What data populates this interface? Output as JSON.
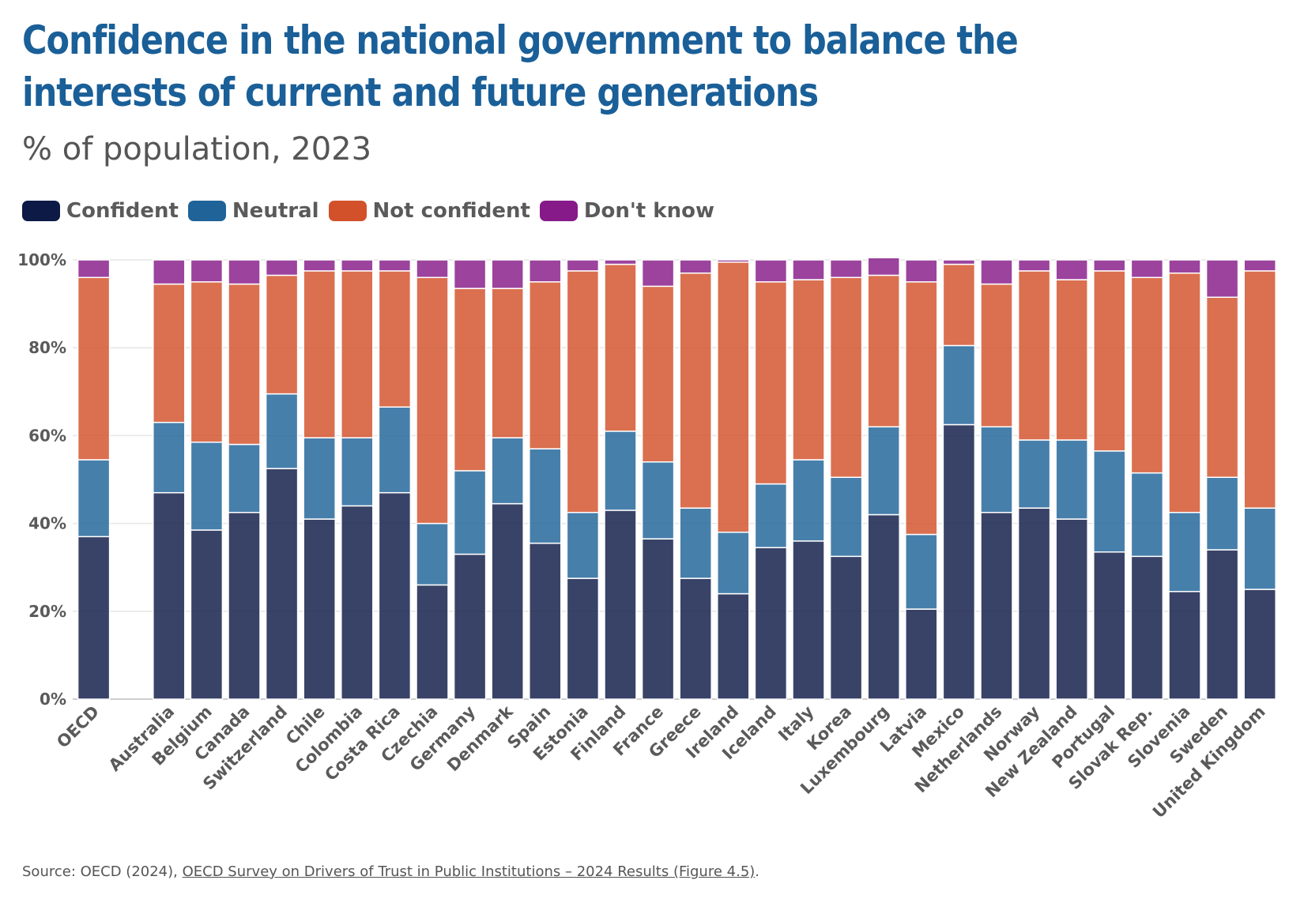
{
  "header": {
    "title": "Confidence in the national government to balance the interests of current and future generations",
    "subtitle": "% of population, 2023"
  },
  "footer": {
    "source_prefix": "Source: OECD (2024), ",
    "source_link": "OECD Survey on Drivers of Trust in Public Institutions – 2024 Results (Figure 4.5)",
    "source_suffix": "."
  },
  "chart_data": {
    "type": "bar",
    "stacked": true,
    "ylim": [
      0,
      100
    ],
    "yticks": [
      "0%",
      "20%",
      "40%",
      "60%",
      "80%",
      "100%"
    ],
    "grid": true,
    "legend_position": "top-left",
    "categories": [
      "OECD",
      "Australia",
      "Belgium",
      "Canada",
      "Switzerland",
      "Chile",
      "Colombia",
      "Costa Rica",
      "Czechia",
      "Germany",
      "Denmark",
      "Spain",
      "Estonia",
      "Finland",
      "France",
      "Greece",
      "Ireland",
      "Iceland",
      "Italy",
      "Korea",
      "Luxembourg",
      "Latvia",
      "Mexico",
      "Netherlands",
      "Norway",
      "New Zealand",
      "Portugal",
      "Slovak Rep.",
      "Slovenia",
      "Sweden",
      "United Kingdom"
    ],
    "series": [
      {
        "name": "Confident",
        "color": "#0d1a45",
        "values": [
          37,
          47,
          38.5,
          42.5,
          52.5,
          41,
          44,
          47,
          26,
          33,
          44.5,
          35.5,
          27.5,
          43,
          36.5,
          27.5,
          24,
          34.5,
          36,
          32.5,
          42,
          20.5,
          62.5,
          42.5,
          43.5,
          41,
          33.5,
          32.5,
          24.5,
          34,
          25
        ]
      },
      {
        "name": "Neutral",
        "color": "#1f6399",
        "values": [
          17.5,
          16,
          20,
          15.5,
          17,
          18.5,
          15.5,
          19.5,
          14,
          19,
          15,
          21.5,
          15,
          18,
          17.5,
          16,
          14,
          14.5,
          18.5,
          18,
          20,
          17,
          18,
          19.5,
          15.5,
          18,
          23,
          19,
          18,
          16.5,
          18.5
        ]
      },
      {
        "name": "Not confident",
        "color": "#d2502a",
        "values": [
          41.5,
          31.5,
          36.5,
          36.5,
          27,
          38,
          38,
          31,
          56,
          41.5,
          34,
          38,
          55,
          38,
          40,
          53.5,
          61.5,
          46,
          41,
          45.5,
          34.5,
          57.5,
          18.5,
          32.5,
          38.5,
          36.5,
          41,
          44.5,
          54.5,
          41,
          54
        ]
      },
      {
        "name": "Don't know",
        "color": "#861a89",
        "values": [
          4,
          5.5,
          5,
          5.5,
          3.5,
          2.5,
          2.5,
          2.5,
          4,
          6.5,
          6.5,
          5,
          2.5,
          1,
          6,
          3,
          0.5,
          5,
          4.5,
          4,
          4,
          5,
          1,
          5.5,
          2.5,
          4.5,
          2.5,
          4,
          3,
          8.5,
          2.5
        ]
      }
    ]
  }
}
